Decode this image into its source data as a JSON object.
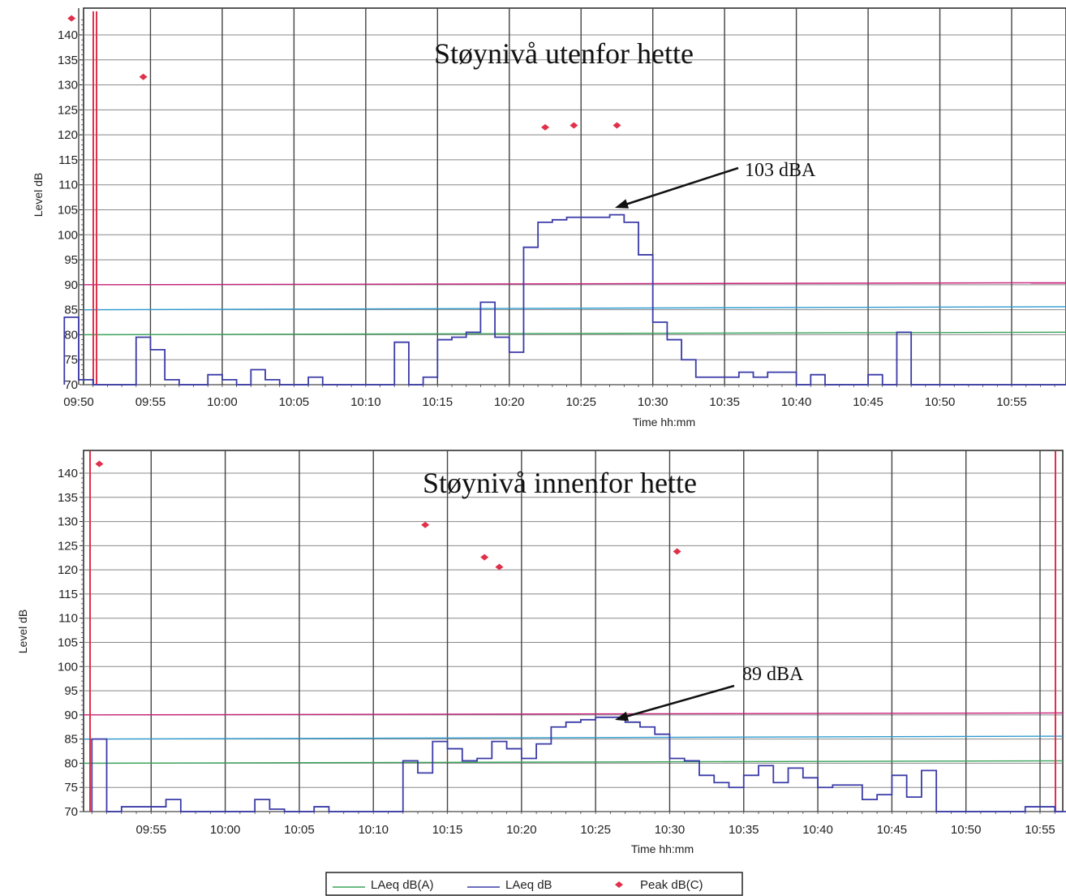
{
  "legend": [
    {
      "label": "LAeq dB(A)",
      "color": "#3aa35a",
      "kind": "line"
    },
    {
      "label": "LAeq dB",
      "color": "#3b3ba8",
      "kind": "line"
    },
    {
      "label": "Peak dB(C)",
      "color": "#e0304a",
      "kind": "marker"
    }
  ],
  "chart_data": [
    {
      "type": "line",
      "title": "Støynivå utenfor hette",
      "xlabel": "Time hh:mm",
      "ylabel": "Level dB",
      "ylim": [
        70,
        143
      ],
      "yticks": [
        70,
        75,
        80,
        85,
        90,
        95,
        100,
        105,
        110,
        115,
        120,
        125,
        130,
        135,
        140
      ],
      "xticks": [
        "09:50",
        "09:55",
        "10:00",
        "10:05",
        "10:10",
        "10:15",
        "10:20",
        "10:25",
        "10:30",
        "10:35",
        "10:40",
        "10:45",
        "10:50",
        "10:55"
      ],
      "xlim_minutes": [
        -0.9,
        71.7
      ],
      "grid": true,
      "legend_position": "bottom",
      "annotation": {
        "text": "103 dBA",
        "target_time": "10:27",
        "target_value": 103.5
      },
      "reference_lines": [
        {
          "name": "90 dB limit",
          "color": "#c8207a",
          "from": 90,
          "to": 90.4
        },
        {
          "name": "85 dB limit",
          "color": "#2e9bd0",
          "from": 85,
          "to": 85.6
        },
        {
          "name": "80 dB limit",
          "color": "#3aa35a",
          "from": 80,
          "to": 80.5
        }
      ],
      "series": [
        {
          "name": "LAeq dB",
          "type": "step",
          "x": [
            "09:49",
            "09:50",
            "09:51",
            "09:52",
            "09:53",
            "09:54",
            "09:55",
            "09:56",
            "09:57",
            "09:58",
            "09:59",
            "10:00",
            "10:01",
            "10:02",
            "10:03",
            "10:04",
            "10:05",
            "10:06",
            "10:07",
            "10:08",
            "10:09",
            "10:10",
            "10:11",
            "10:12",
            "10:13",
            "10:14",
            "10:15",
            "10:16",
            "10:17",
            "10:18",
            "10:19",
            "10:20",
            "10:21",
            "10:22",
            "10:23",
            "10:24",
            "10:25",
            "10:26",
            "10:27",
            "10:28",
            "10:29",
            "10:30",
            "10:31",
            "10:32",
            "10:33",
            "10:34",
            "10:35",
            "10:36",
            "10:37",
            "10:38",
            "10:39",
            "10:40",
            "10:41",
            "10:42",
            "10:43",
            "10:44",
            "10:45",
            "10:46",
            "10:47",
            "10:48",
            "10:49",
            "10:50",
            "10:51",
            "10:52",
            "10:53",
            "10:54",
            "10:55",
            "10:56",
            "10:57",
            "10:58"
          ],
          "y": [
            83.5,
            71,
            70,
            70,
            70,
            79.5,
            77,
            71,
            70,
            70,
            72,
            71,
            70,
            73,
            71,
            70,
            70,
            71.5,
            70,
            70,
            70,
            70,
            70,
            78.5,
            70,
            71.5,
            79,
            79.5,
            80.5,
            86.5,
            79.5,
            76.5,
            97.5,
            102.5,
            103,
            103.5,
            103.5,
            103.5,
            104,
            102.5,
            96,
            82.5,
            79,
            75,
            71.5,
            71.5,
            71.5,
            72.5,
            71.5,
            72.5,
            72.5,
            70,
            72,
            70,
            70,
            70,
            72,
            70,
            80.5,
            70,
            70,
            70,
            70,
            70,
            70,
            70,
            70,
            70,
            70,
            70
          ]
        },
        {
          "name": "Peak dB(C)",
          "type": "scatter",
          "x": [
            "09:49",
            "09:54",
            "10:22",
            "10:24",
            "10:27"
          ],
          "y": [
            143.3,
            131.6,
            121.5,
            121.9,
            121.9
          ]
        }
      ]
    },
    {
      "type": "line",
      "title": "Støynivå innenfor hette",
      "xlabel": "Time hh:mm",
      "ylabel": "Level dB",
      "ylim": [
        70,
        143
      ],
      "yticks": [
        70,
        75,
        80,
        85,
        90,
        95,
        100,
        105,
        110,
        115,
        120,
        125,
        130,
        135,
        140
      ],
      "xticks": [
        "09:55",
        "10:00",
        "10:05",
        "10:10",
        "10:15",
        "10:20",
        "10:25",
        "10:30",
        "10:35",
        "10:40",
        "10:45",
        "10:50",
        "10:55"
      ],
      "xlim_minutes": [
        0.9,
        66.6
      ],
      "grid": true,
      "legend_position": "bottom",
      "annotation": {
        "text": "89 dBA",
        "target_time": "10:27",
        "target_value": 89
      },
      "reference_lines": [
        {
          "name": "90 dB limit",
          "color": "#c8207a",
          "from": 90,
          "to": 90.4
        },
        {
          "name": "85 dB limit",
          "color": "#2e9bd0",
          "from": 85,
          "to": 85.6
        },
        {
          "name": "80 dB limit",
          "color": "#3aa35a",
          "from": 80,
          "to": 80.5
        }
      ],
      "series": [
        {
          "name": "LAeq dB",
          "type": "step",
          "x": [
            "09:51",
            "09:52",
            "09:53",
            "09:54",
            "09:55",
            "09:56",
            "09:57",
            "09:58",
            "09:59",
            "10:00",
            "10:01",
            "10:02",
            "10:03",
            "10:04",
            "10:05",
            "10:06",
            "10:07",
            "10:08",
            "10:09",
            "10:10",
            "10:11",
            "10:12",
            "10:13",
            "10:14",
            "10:15",
            "10:16",
            "10:17",
            "10:18",
            "10:19",
            "10:20",
            "10:21",
            "10:22",
            "10:23",
            "10:24",
            "10:25",
            "10:26",
            "10:27",
            "10:28",
            "10:29",
            "10:30",
            "10:31",
            "10:32",
            "10:33",
            "10:34",
            "10:35",
            "10:36",
            "10:37",
            "10:38",
            "10:39",
            "10:40",
            "10:41",
            "10:42",
            "10:43",
            "10:44",
            "10:45",
            "10:46",
            "10:47",
            "10:48",
            "10:49",
            "10:50",
            "10:51",
            "10:52",
            "10:53",
            "10:54",
            "10:55",
            "10:56",
            "10:57"
          ],
          "y": [
            85,
            70,
            71,
            71,
            71,
            72.5,
            70,
            70,
            70,
            70,
            70,
            72.5,
            70.5,
            70,
            70,
            71,
            70,
            70,
            70,
            70,
            70,
            80.5,
            78,
            84.5,
            83,
            80.5,
            81,
            84.5,
            83,
            81,
            84,
            87.5,
            88.5,
            89,
            89.5,
            89.5,
            88.5,
            87.5,
            86,
            81,
            80.5,
            77.5,
            76,
            75,
            77.5,
            79.5,
            76,
            79,
            77,
            75,
            75.5,
            75.5,
            72.5,
            73.5,
            77.5,
            73,
            78.5,
            70,
            70,
            70,
            70,
            70,
            70,
            71,
            71,
            70,
            70
          ]
        },
        {
          "name": "Peak dB(C)",
          "type": "scatter",
          "x": [
            "09:51",
            "10:13",
            "10:17",
            "10:18",
            "10:30"
          ],
          "y": [
            141.9,
            129.3,
            122.6,
            120.6,
            123.8
          ]
        }
      ]
    }
  ]
}
